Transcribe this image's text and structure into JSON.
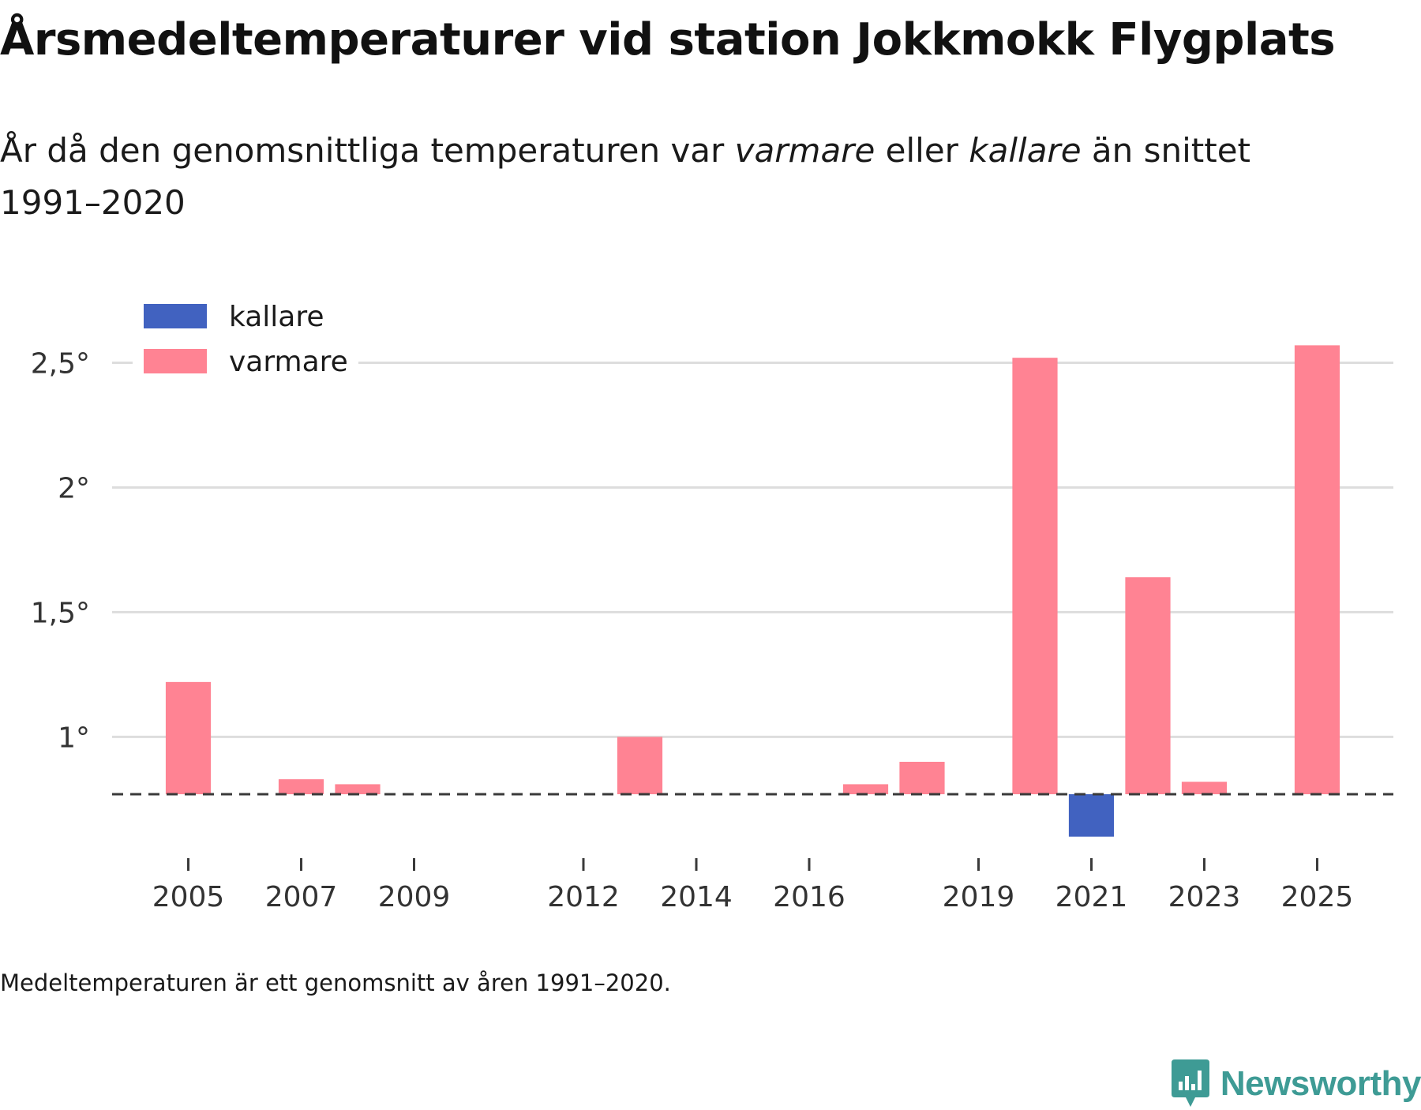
{
  "title": "Årsmedeltemperaturer vid station Jokkmokk Flygplats",
  "subtitle": {
    "prefix": "År då den genomsnittliga temperaturen var ",
    "warm_word": "varmare",
    "middle": " eller ",
    "cold_word": "kallare",
    "suffix": " än snittet 1991–2020"
  },
  "footnote": "Medeltemperaturen är ett genomsnitt av åren 1991–2020.",
  "brand": "Newsworthy",
  "colors": {
    "warmer": "#ff8393",
    "colder": "#4162c0",
    "grid": "#dddddd",
    "baseline": "#3a3a3a",
    "axis_text": "#333333",
    "brand": "#3e9b95"
  },
  "chart_data": {
    "type": "bar",
    "title": "Årsmedeltemperaturer vid station Jokkmokk Flygplats",
    "xlabel": "",
    "ylabel": "",
    "baseline": 0.77,
    "ylim": [
      0.52,
      2.72
    ],
    "yticks": [
      1,
      1.5,
      2,
      2.5
    ],
    "ytick_labels": [
      "1°",
      "1,5°",
      "2°",
      "2,5°"
    ],
    "xlim": [
      2003.65,
      2026.35
    ],
    "xticks": [
      2005,
      2007,
      2009,
      2012,
      2014,
      2016,
      2019,
      2021,
      2023,
      2025
    ],
    "xtick_labels": [
      "2005",
      "2007",
      "2009",
      "2012",
      "2014",
      "2016",
      "2019",
      "2021",
      "2023",
      "2025"
    ],
    "legend_position": "top-left",
    "series": [
      {
        "name": "kallare",
        "color": "#4162c0"
      },
      {
        "name": "varmare",
        "color": "#ff8393"
      }
    ],
    "bars": [
      {
        "year": 2005,
        "value": 1.22,
        "series": "varmare"
      },
      {
        "year": 2007,
        "value": 0.83,
        "series": "varmare"
      },
      {
        "year": 2008,
        "value": 0.81,
        "series": "varmare"
      },
      {
        "year": 2013,
        "value": 1.0,
        "series": "varmare"
      },
      {
        "year": 2017,
        "value": 0.81,
        "series": "varmare"
      },
      {
        "year": 2018,
        "value": 0.9,
        "series": "varmare"
      },
      {
        "year": 2020,
        "value": 2.52,
        "series": "varmare"
      },
      {
        "year": 2021,
        "value": 0.6,
        "series": "kallare"
      },
      {
        "year": 2022,
        "value": 1.64,
        "series": "varmare"
      },
      {
        "year": 2023,
        "value": 0.82,
        "series": "varmare"
      },
      {
        "year": 2025,
        "value": 2.57,
        "series": "varmare"
      }
    ]
  }
}
